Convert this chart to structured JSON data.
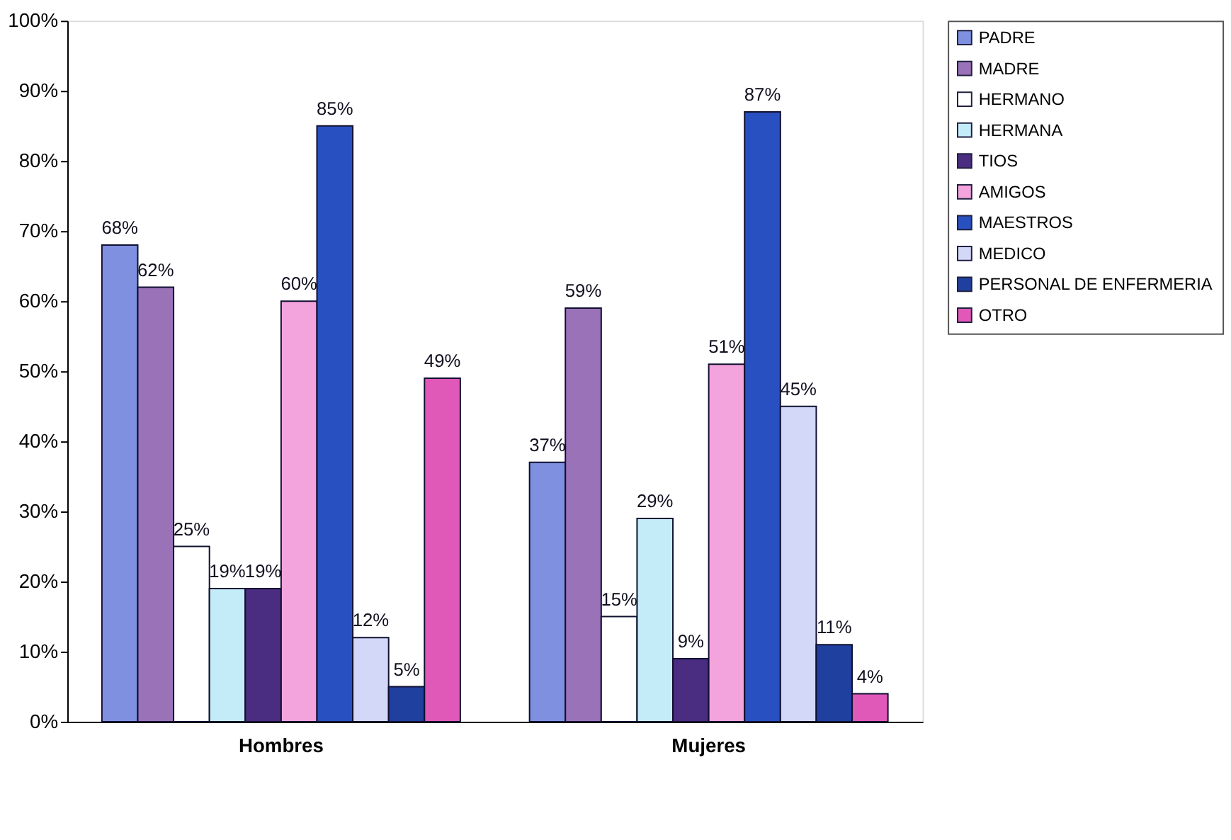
{
  "chart_data": {
    "type": "bar",
    "categories": [
      "Hombres",
      "Mujeres"
    ],
    "series": [
      {
        "name": "PADRE",
        "color": "#7f90e0",
        "values": [
          68,
          37
        ],
        "value_labels": [
          "68%",
          "37%"
        ]
      },
      {
        "name": "MADRE",
        "color": "#9a72b8",
        "values": [
          62,
          59
        ],
        "value_labels": [
          "62%",
          "59%"
        ]
      },
      {
        "name": "HERMANO",
        "color": "#ffffff",
        "values": [
          25,
          15
        ],
        "value_labels": [
          "25%",
          "15%"
        ]
      },
      {
        "name": "HERMANA",
        "color": "#c4ecf8",
        "values": [
          19,
          29
        ],
        "value_labels": [
          "19%",
          "29%"
        ]
      },
      {
        "name": "TIOS",
        "color": "#4a2c80",
        "values": [
          19,
          9
        ],
        "value_labels": [
          "19%",
          "9%"
        ]
      },
      {
        "name": "AMIGOS",
        "color": "#f4a4dc",
        "values": [
          60,
          51
        ],
        "value_labels": [
          "60%",
          "51%"
        ]
      },
      {
        "name": "MAESTROS",
        "color": "#2850c0",
        "values": [
          85,
          87
        ],
        "value_labels": [
          "85%",
          "87%"
        ]
      },
      {
        "name": "MEDICO",
        "color": "#d4d8f8",
        "values": [
          12,
          45
        ],
        "value_labels": [
          "12%",
          "45%"
        ]
      },
      {
        "name": "PERSONAL DE ENFERMERIA",
        "color": "#2040a0",
        "values": [
          5,
          11
        ],
        "value_labels": [
          "5%",
          "11%"
        ]
      },
      {
        "name": "OTRO",
        "color": "#e058b8",
        "values": [
          49,
          4
        ],
        "value_labels": [
          "49%",
          "4%"
        ]
      }
    ],
    "ylim": [
      0,
      100
    ],
    "yticks": [
      {
        "value": 0,
        "label": "0%"
      },
      {
        "value": 10,
        "label": "10%"
      },
      {
        "value": 20,
        "label": "20%"
      },
      {
        "value": 30,
        "label": "30%"
      },
      {
        "value": 40,
        "label": "40%"
      },
      {
        "value": 50,
        "label": "50%"
      },
      {
        "value": 60,
        "label": "60%"
      },
      {
        "value": 70,
        "label": "70%"
      },
      {
        "value": 80,
        "label": "80%"
      },
      {
        "value": 90,
        "label": "90%"
      },
      {
        "value": 100,
        "label": "100%"
      }
    ],
    "grid": false,
    "legend": "right"
  }
}
